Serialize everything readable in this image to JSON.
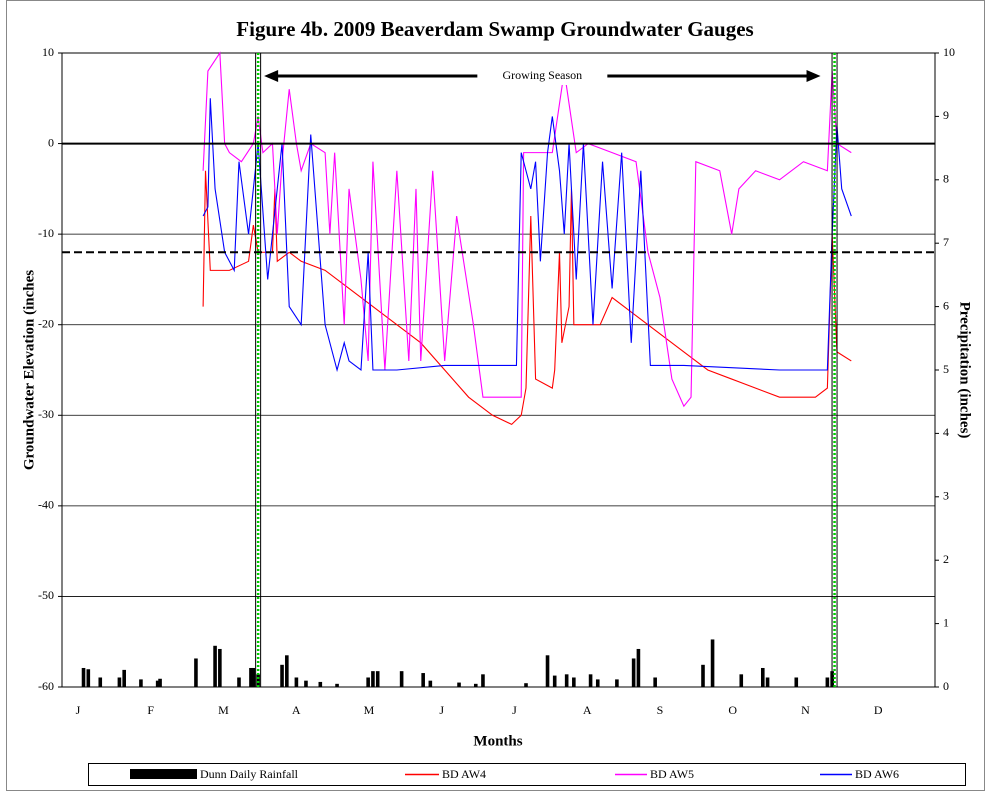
{
  "chart_data": {
    "type": "line",
    "title": "Figure 4b. 2009 Beaverdam Swamp Groundwater Gauges",
    "ylabel": "Groundwater Elevation (inches",
    "y2label": "Precipitation (inches)",
    "xlabel": "Months",
    "categories": [
      "J",
      "F",
      "M",
      "A",
      "M",
      "J",
      "J",
      "A",
      "S",
      "O",
      "N",
      "D"
    ],
    "xlim": [
      0,
      365
    ],
    "ylim": [
      -60,
      10
    ],
    "yticks": [
      10,
      0,
      -10,
      -20,
      -30,
      -40,
      -50,
      -60
    ],
    "y2lim": [
      0,
      10
    ],
    "y2ticks": [
      0,
      1,
      2,
      3,
      4,
      5,
      6,
      7,
      8,
      9,
      10
    ],
    "grid": true,
    "legend": "bottom",
    "hlines": [
      {
        "value": 0,
        "style": "solid"
      },
      {
        "value": -12,
        "style": "dashed"
      }
    ],
    "vlines": [
      82,
      323
    ],
    "annotation": "Growing Season",
    "series": [
      {
        "name": "Dunn Daily Rainfall",
        "type": "bar",
        "axis": "y2",
        "color": "#000000",
        "x": [
          9,
          11,
          16,
          24,
          26,
          33,
          40,
          41,
          56,
          64,
          66,
          74,
          79,
          80,
          82,
          92,
          94,
          98,
          102,
          108,
          115,
          128,
          130,
          132,
          142,
          151,
          154,
          166,
          173,
          176,
          194,
          203,
          206,
          211,
          214,
          221,
          224,
          232,
          239,
          241,
          248,
          268,
          272,
          284,
          293,
          295,
          307,
          320,
          322
        ],
        "values": [
          0.3,
          0.28,
          0.15,
          0.15,
          0.27,
          0.12,
          0.1,
          0.13,
          0.45,
          0.65,
          0.6,
          0.15,
          0.3,
          0.3,
          0.2,
          0.35,
          0.5,
          0.15,
          0.1,
          0.08,
          0.05,
          0.15,
          0.25,
          0.25,
          0.25,
          0.22,
          0.1,
          0.07,
          0.05,
          0.2,
          0.06,
          0.5,
          0.18,
          0.2,
          0.15,
          0.2,
          0.12,
          0.12,
          0.45,
          0.6,
          0.15,
          0.35,
          0.75,
          0.2,
          0.3,
          0.15,
          0.15,
          0.15,
          0.25
        ]
      },
      {
        "name": "BD AW4",
        "type": "line",
        "color": "#ff0000",
        "x": [
          59,
          60,
          62,
          70,
          78,
          80,
          82,
          88,
          89,
          90,
          95,
          100,
          110,
          120,
          130,
          140,
          150,
          160,
          170,
          180,
          188,
          192,
          194,
          196,
          198,
          205,
          206,
          208,
          209,
          212,
          213,
          214,
          220,
          225,
          230,
          240,
          250,
          260,
          270,
          280,
          290,
          300,
          315,
          320,
          322,
          324,
          330
        ],
        "values": [
          -18,
          -3,
          -14,
          -14,
          -13,
          -9,
          -12,
          -12,
          -5,
          -13,
          -12,
          -13,
          -14,
          -16,
          -18,
          -20,
          -22,
          -25,
          -28,
          -30,
          -31,
          -30,
          -27,
          -8,
          -26,
          -27,
          -25,
          -12,
          -22,
          -18,
          -5,
          -20,
          -20,
          -20,
          -17,
          -19,
          -21,
          -23,
          -25,
          -26,
          -27,
          -28,
          -28,
          -27,
          -10,
          -23,
          -24
        ]
      },
      {
        "name": "BD AW5",
        "type": "line",
        "color": "#ff00ff",
        "x": [
          59,
          61,
          66,
          68,
          70,
          75,
          80,
          82,
          84,
          88,
          90,
          92,
          95,
          98,
          100,
          104,
          110,
          112,
          114,
          118,
          120,
          125,
          128,
          130,
          135,
          140,
          145,
          148,
          150,
          155,
          160,
          165,
          172,
          176,
          192,
          193,
          200,
          205,
          210,
          215,
          220,
          230,
          240,
          245,
          250,
          255,
          260,
          263,
          265,
          275,
          280,
          283,
          290,
          300,
          310,
          320,
          322,
          324,
          330
        ],
        "values": [
          -3,
          8,
          10,
          0,
          -1,
          -2,
          0,
          3,
          -1,
          0,
          -10,
          -2,
          6,
          0,
          -3,
          0,
          -1,
          -10,
          -1,
          -20,
          -5,
          -15,
          -24,
          -2,
          -25,
          -3,
          -24,
          -5,
          -24,
          -3,
          -24,
          -8,
          -20,
          -28,
          -28,
          -1,
          -1,
          -1,
          8,
          -1,
          0,
          -1,
          -2,
          -12,
          -17,
          -26,
          -29,
          -28,
          -2,
          -3,
          -10,
          -5,
          -3,
          -4,
          -2,
          -3,
          8,
          0,
          -1
        ]
      },
      {
        "name": "BD AW6",
        "type": "line",
        "color": "#0000ff",
        "x": [
          59,
          61,
          62,
          64,
          68,
          72,
          74,
          78,
          82,
          86,
          90,
          92,
          95,
          100,
          104,
          110,
          115,
          118,
          120,
          125,
          128,
          130,
          140,
          160,
          190,
          192,
          196,
          198,
          200,
          203,
          205,
          208,
          210,
          212,
          215,
          218,
          222,
          226,
          230,
          234,
          238,
          242,
          246,
          260,
          300,
          320,
          322,
          324,
          326,
          330
        ],
        "values": [
          -8,
          -7,
          5,
          -5,
          -12,
          -14,
          -2,
          -10,
          0,
          -15,
          -5,
          0,
          -18,
          -20,
          1,
          -20,
          -25,
          -22,
          -24,
          -25,
          -12,
          -25,
          -25,
          -24.5,
          -24.5,
          -1,
          -5,
          -2,
          -13,
          -1,
          3,
          -3,
          -10,
          0,
          -15,
          0,
          -20,
          -2,
          -16,
          -1,
          -22,
          -3,
          -24.5,
          -24.5,
          -25,
          -25,
          -10,
          2,
          -5,
          -8
        ]
      }
    ]
  }
}
